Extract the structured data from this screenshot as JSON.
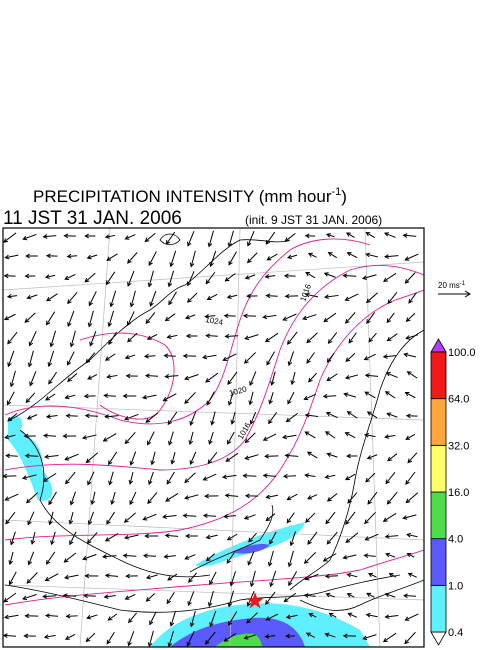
{
  "title": {
    "main": "PRECIPITATION INTENSITY (mm hour",
    "exponent": "-1",
    "close": ")"
  },
  "valid_time": "11 JST 31 JAN. 2006",
  "init_time": "(init. 9 JST 31 JAN. 2006)",
  "reference_vector": {
    "label": "20 ms",
    "exponent": "-1"
  },
  "isobar_labels": [
    "1016",
    "1024",
    "1020",
    "1016"
  ],
  "colorbar": {
    "levels": [
      {
        "value": 0.4,
        "label": "0.4"
      },
      {
        "value": 1,
        "label": "1.0"
      },
      {
        "value": 4,
        "label": "4.0"
      },
      {
        "value": 16,
        "label": "16.0"
      },
      {
        "value": 32,
        "label": "32.0"
      },
      {
        "value": 64,
        "label": "64.0"
      },
      {
        "value": 100,
        "label": "100.0"
      }
    ],
    "colors": [
      "#5ef0ff",
      "#5a5aff",
      "#4cdc4c",
      "#ffff6a",
      "#ffa53c",
      "#f01818"
    ],
    "under_color": "#ffffff",
    "over_color": "#b43cff"
  }
}
